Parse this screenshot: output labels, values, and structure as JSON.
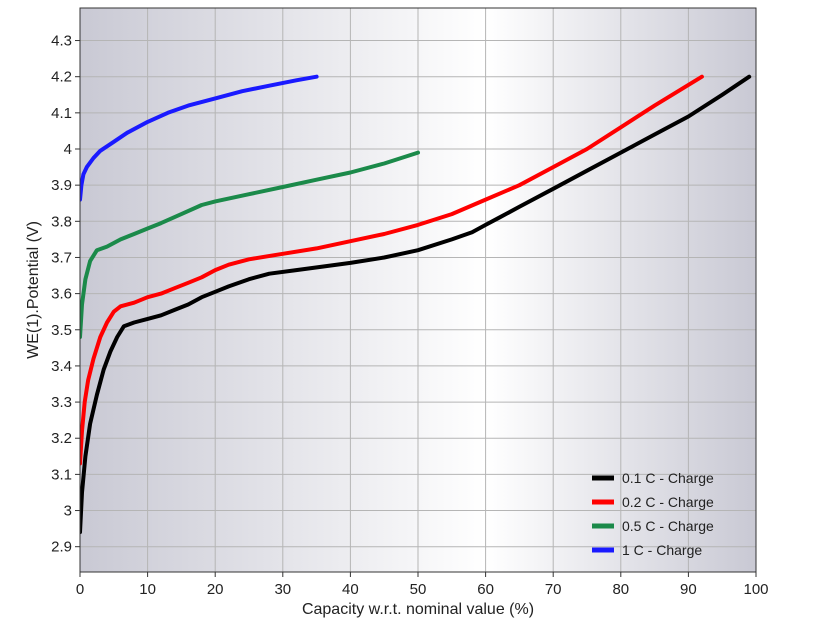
{
  "chart_data": {
    "type": "line",
    "title": "",
    "xlabel": "Capacity w.r.t. nominal value (%)",
    "ylabel": "WE(1).Potential (V)",
    "xlim": [
      0,
      100
    ],
    "ylim": [
      2.83,
      4.39
    ],
    "x_ticks": [
      0,
      10,
      20,
      30,
      40,
      50,
      60,
      70,
      80,
      90,
      100
    ],
    "y_ticks": [
      2.9,
      3,
      3.1,
      3.2,
      3.3,
      3.4,
      3.5,
      3.6,
      3.7,
      3.8,
      3.9,
      4,
      4.1,
      4.2,
      4.3
    ],
    "y_tick_labels": [
      "2.9",
      "3",
      "3.1",
      "3.2",
      "3.3",
      "3.4",
      "3.5",
      "3.6",
      "3.7",
      "3.8",
      "3.9",
      "4",
      "4.1",
      "4.2",
      "4.3"
    ],
    "grid": true,
    "legend_position": "bottom-right",
    "series": [
      {
        "name": "0.1 C - Charge",
        "color": "#000000",
        "x": [
          0,
          0.3,
          0.8,
          1.5,
          2.5,
          3.5,
          4.5,
          5.5,
          6.5,
          8,
          10,
          12,
          14,
          16,
          18,
          20,
          22,
          25,
          28,
          32,
          36,
          40,
          45,
          50,
          55,
          58,
          60,
          62,
          65,
          70,
          75,
          80,
          85,
          90,
          95,
          99
        ],
        "y": [
          2.94,
          3.05,
          3.15,
          3.24,
          3.32,
          3.39,
          3.44,
          3.48,
          3.51,
          3.52,
          3.53,
          3.54,
          3.555,
          3.57,
          3.59,
          3.605,
          3.62,
          3.64,
          3.655,
          3.665,
          3.675,
          3.685,
          3.7,
          3.72,
          3.75,
          3.77,
          3.79,
          3.81,
          3.84,
          3.89,
          3.94,
          3.99,
          4.04,
          4.09,
          4.15,
          4.2
        ]
      },
      {
        "name": "0.2 C - Charge",
        "color": "#ff0000",
        "x": [
          0,
          0.3,
          0.7,
          1.2,
          2,
          3,
          4,
          5,
          6,
          8,
          10,
          12,
          14,
          16,
          18,
          20,
          22,
          25,
          30,
          35,
          40,
          45,
          50,
          55,
          60,
          65,
          70,
          75,
          80,
          85,
          92
        ],
        "y": [
          3.13,
          3.22,
          3.3,
          3.36,
          3.42,
          3.48,
          3.52,
          3.55,
          3.565,
          3.575,
          3.59,
          3.6,
          3.615,
          3.63,
          3.645,
          3.665,
          3.68,
          3.695,
          3.71,
          3.725,
          3.745,
          3.765,
          3.79,
          3.82,
          3.86,
          3.9,
          3.95,
          4.0,
          4.06,
          4.12,
          4.2
        ]
      },
      {
        "name": "0.5 C - Charge",
        "color": "#1b8a4a",
        "x": [
          0,
          0.3,
          0.8,
          1.5,
          2.5,
          4,
          6,
          8,
          10,
          12,
          15,
          18,
          20,
          25,
          30,
          35,
          40,
          45,
          50
        ],
        "y": [
          3.48,
          3.57,
          3.64,
          3.69,
          3.72,
          3.73,
          3.75,
          3.765,
          3.78,
          3.795,
          3.82,
          3.845,
          3.855,
          3.875,
          3.895,
          3.915,
          3.935,
          3.96,
          3.99
        ]
      },
      {
        "name": "1 C - Charge",
        "color": "#1a1aff",
        "x": [
          0,
          0.2,
          0.5,
          1,
          2,
          3,
          5,
          7,
          10,
          13,
          16,
          20,
          24,
          28,
          32,
          35
        ],
        "y": [
          3.86,
          3.9,
          3.93,
          3.95,
          3.975,
          3.995,
          4.02,
          4.045,
          4.075,
          4.1,
          4.12,
          4.14,
          4.16,
          4.175,
          4.19,
          4.2
        ]
      }
    ]
  }
}
